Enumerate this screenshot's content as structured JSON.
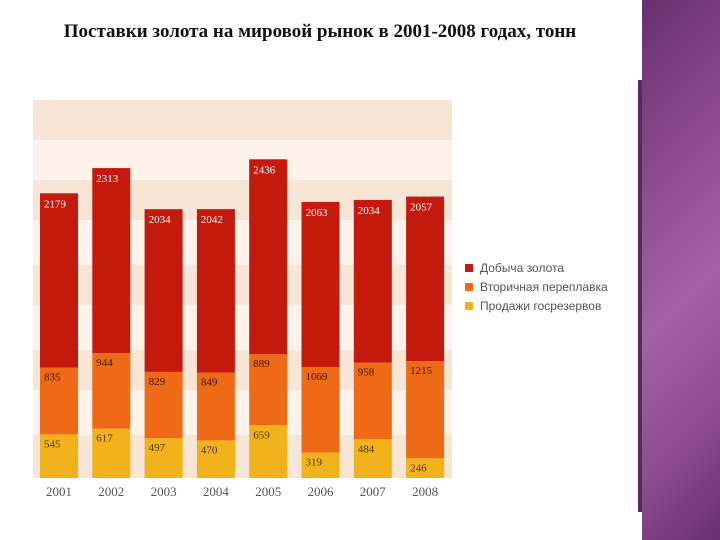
{
  "title": "Поставки золота на мировой рынок в 2001-2008 годах, тонн",
  "colors": {
    "mining": "#c41a0e",
    "recycling": "#ee6a16",
    "reserves": "#f2b21c",
    "band": "#f7e6d6",
    "panel": "#8b4a8e"
  },
  "chart_data": {
    "type": "bar",
    "stacked": true,
    "categories": [
      "2001",
      "2002",
      "2003",
      "2004",
      "2005",
      "2006",
      "2007",
      "2008"
    ],
    "series": [
      {
        "name": "Продажи госрезервов",
        "values": [
          545,
          617,
          497,
          470,
          659,
          319,
          484,
          246
        ]
      },
      {
        "name": "Вторичная переплавка",
        "values": [
          835,
          944,
          829,
          849,
          889,
          1069,
          958,
          1215
        ]
      },
      {
        "name": "Добыча золота",
        "values": [
          2179,
          2313,
          2034,
          2042,
          2436,
          2063,
          2034,
          2057
        ]
      }
    ],
    "legend": "right",
    "grid": false
  }
}
